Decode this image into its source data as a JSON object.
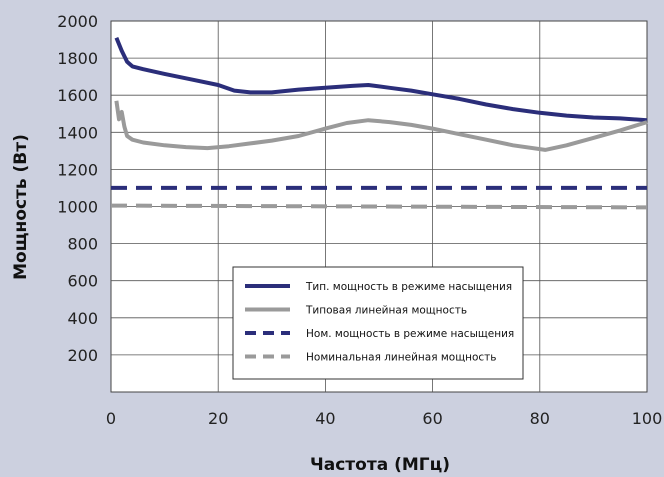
{
  "chart_data": {
    "type": "line",
    "title": "",
    "xlabel": "Частота (МГц)",
    "ylabel": "Мощность (Вт)",
    "xlim": [
      0,
      100
    ],
    "ylim": [
      0,
      2000
    ],
    "x_ticks": [
      "0",
      "20",
      "40",
      "60",
      "80",
      "100"
    ],
    "y_ticks": [
      "200",
      "400",
      "600",
      "800",
      "1000",
      "1200",
      "1400",
      "1600",
      "1800",
      "2000"
    ],
    "grid": true,
    "legend_position": "lower-center",
    "series": [
      {
        "name": "Тип. мощность в режиме насыщения",
        "color": "#2b2e7a",
        "style": "solid",
        "x": [
          1,
          2,
          3,
          4,
          6,
          10,
          15,
          20,
          23,
          26,
          30,
          35,
          40,
          45,
          48,
          52,
          56,
          60,
          65,
          70,
          75,
          80,
          85,
          90,
          95,
          100
        ],
        "y": [
          1910,
          1840,
          1780,
          1755,
          1740,
          1715,
          1685,
          1655,
          1625,
          1615,
          1615,
          1630,
          1640,
          1650,
          1655,
          1640,
          1625,
          1605,
          1580,
          1550,
          1525,
          1505,
          1490,
          1480,
          1475,
          1465
        ]
      },
      {
        "name": "Типовая линейная мощность",
        "color": "#9a9a9a",
        "style": "solid",
        "x": [
          1,
          1.5,
          2,
          2.5,
          3,
          4,
          6,
          10,
          14,
          18,
          22,
          26,
          30,
          35,
          40,
          44,
          48,
          52,
          56,
          60,
          65,
          70,
          75,
          81,
          85,
          90,
          95,
          100
        ],
        "y": [
          1570,
          1470,
          1510,
          1430,
          1380,
          1360,
          1345,
          1330,
          1320,
          1315,
          1325,
          1340,
          1355,
          1380,
          1420,
          1450,
          1465,
          1455,
          1440,
          1420,
          1390,
          1360,
          1330,
          1305,
          1330,
          1370,
          1410,
          1455
        ]
      },
      {
        "name": "Ном. мощность в режиме насыщения",
        "color": "#2b2e7a",
        "style": "dashed",
        "x": [
          0,
          100
        ],
        "y": [
          1100,
          1100
        ]
      },
      {
        "name": "Номинальная линейная мощность",
        "color": "#9a9a9a",
        "style": "dashed",
        "x": [
          0,
          100
        ],
        "y": [
          1005,
          995
        ]
      }
    ]
  }
}
